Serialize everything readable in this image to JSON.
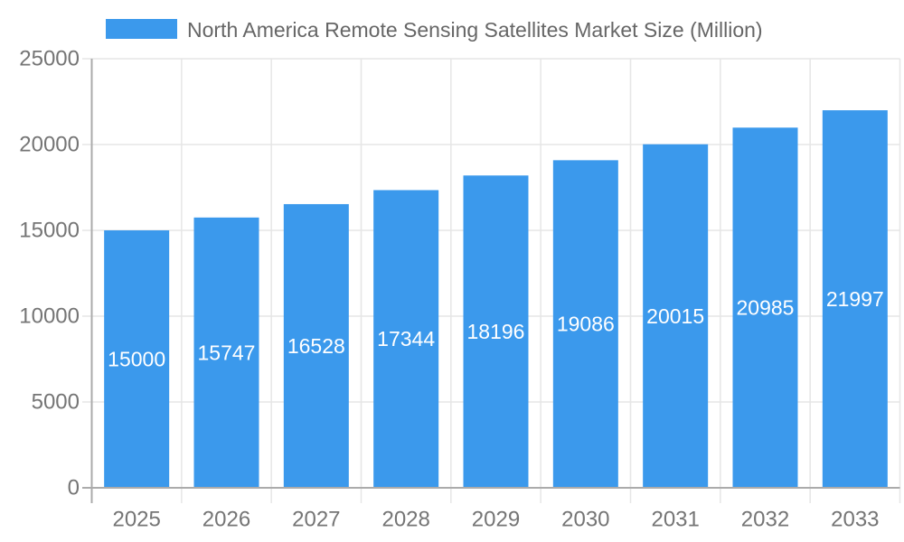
{
  "chart_data": {
    "type": "bar",
    "title": "North America Remote Sensing Satellites Market Size (Million)",
    "categories": [
      "2025",
      "2026",
      "2027",
      "2028",
      "2029",
      "2030",
      "2031",
      "2032",
      "2033"
    ],
    "values": [
      15000,
      15747,
      16528,
      17344,
      18196,
      19086,
      20015,
      20985,
      21997
    ],
    "value_labels": [
      "15000",
      "15747",
      "16528",
      "17344",
      "18196",
      "19086",
      "20015",
      "20985",
      "21997"
    ],
    "xlabel": "",
    "ylabel": "",
    "ylim": [
      0,
      25000
    ],
    "y_ticks": [
      0,
      5000,
      10000,
      15000,
      20000,
      25000
    ],
    "y_tick_labels": [
      "0",
      "5000",
      "10000",
      "15000",
      "20000",
      "25000"
    ],
    "grid": "on",
    "legend_position": "top",
    "colors": {
      "bar": "#3b99ec",
      "value_label": "#ffffff",
      "tick_label": "#757575",
      "legend_text": "#666666",
      "axis_line": "#ababab",
      "grid_line": "#e6e6e6",
      "background": "#ffffff"
    }
  }
}
